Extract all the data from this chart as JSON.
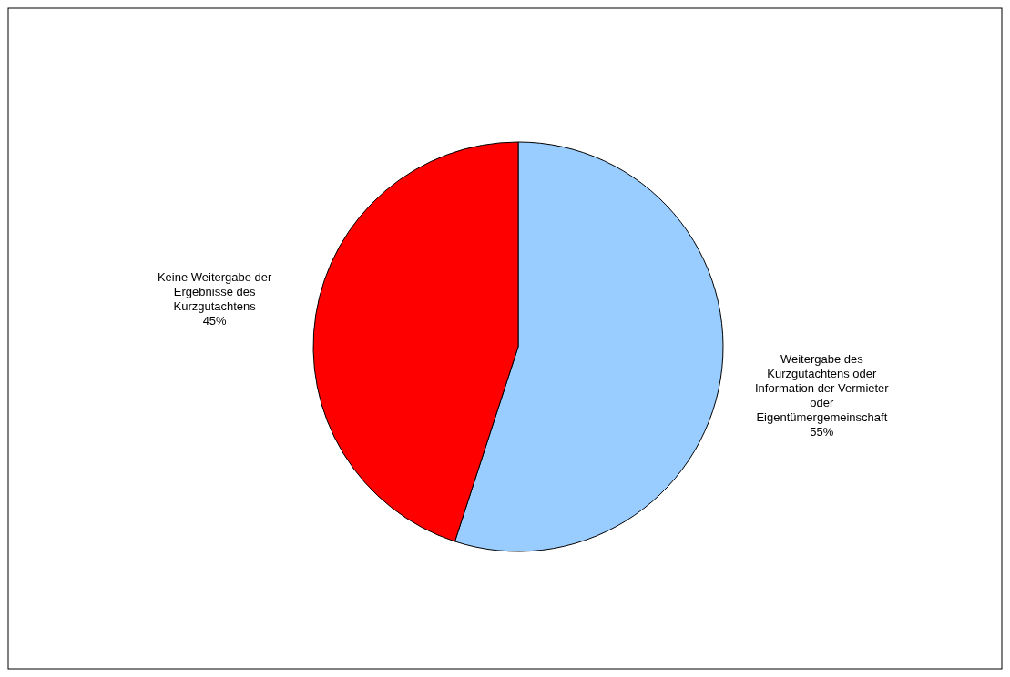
{
  "chart_data": {
    "type": "pie",
    "categories": [
      "Weitergabe des Kurzgutachtens oder Information der Vermieter oder Eigentümergemeinschaft",
      "Keine Weitergabe der Ergebnisse des Kurzgutachtens"
    ],
    "values": [
      55,
      45
    ],
    "colors": [
      "#99ccff",
      "#ff0000"
    ],
    "value_labels": [
      "55%",
      "45%"
    ],
    "legend": false
  }
}
